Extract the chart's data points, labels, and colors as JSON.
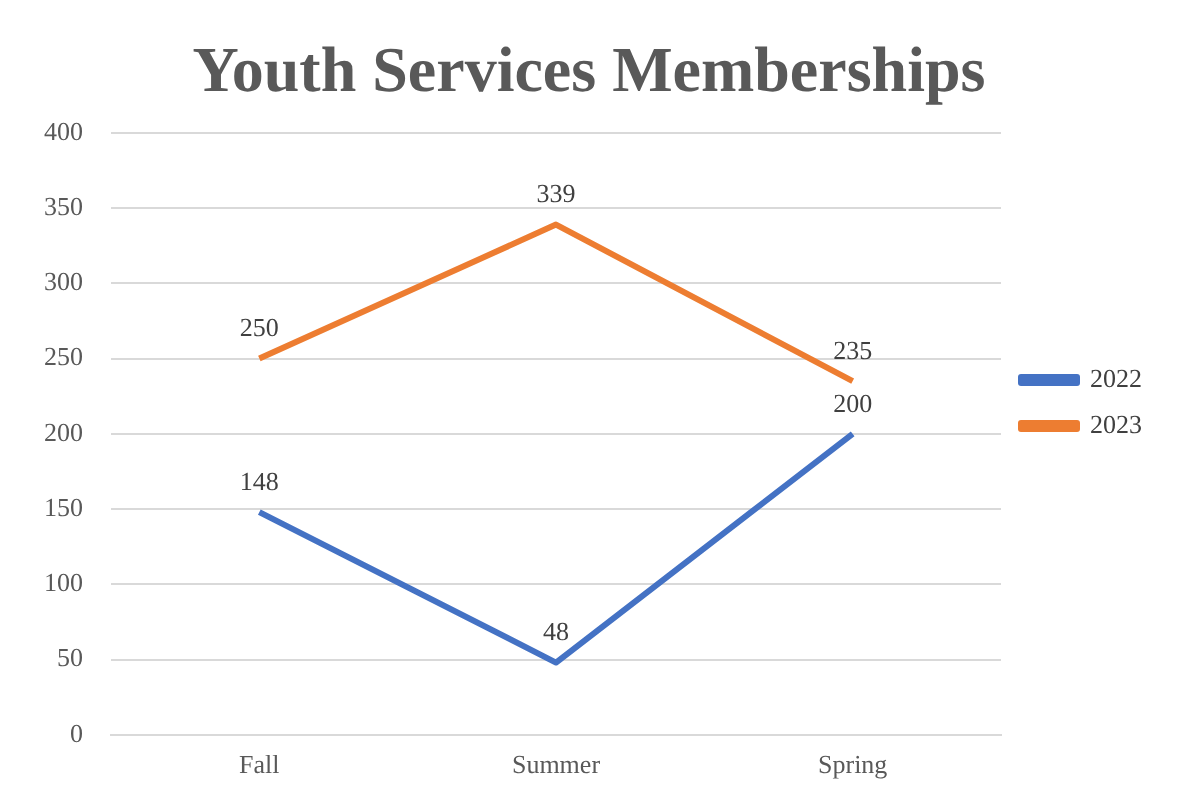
{
  "chart_data": {
    "type": "line",
    "title": "Youth Services Memberships",
    "categories": [
      "Fall",
      "Summer",
      "Spring"
    ],
    "series": [
      {
        "name": "2022",
        "color": "#4472c4",
        "values": [
          148,
          48,
          200
        ]
      },
      {
        "name": "2023",
        "color": "#ed7d31",
        "values": [
          250,
          339,
          235
        ]
      }
    ],
    "ylim": [
      0,
      400
    ],
    "yticks": [
      0,
      50,
      100,
      150,
      200,
      250,
      300,
      350,
      400
    ],
    "grid": "y",
    "legend": "right",
    "data_labels": true,
    "marker": "none",
    "line_style": "solid"
  }
}
